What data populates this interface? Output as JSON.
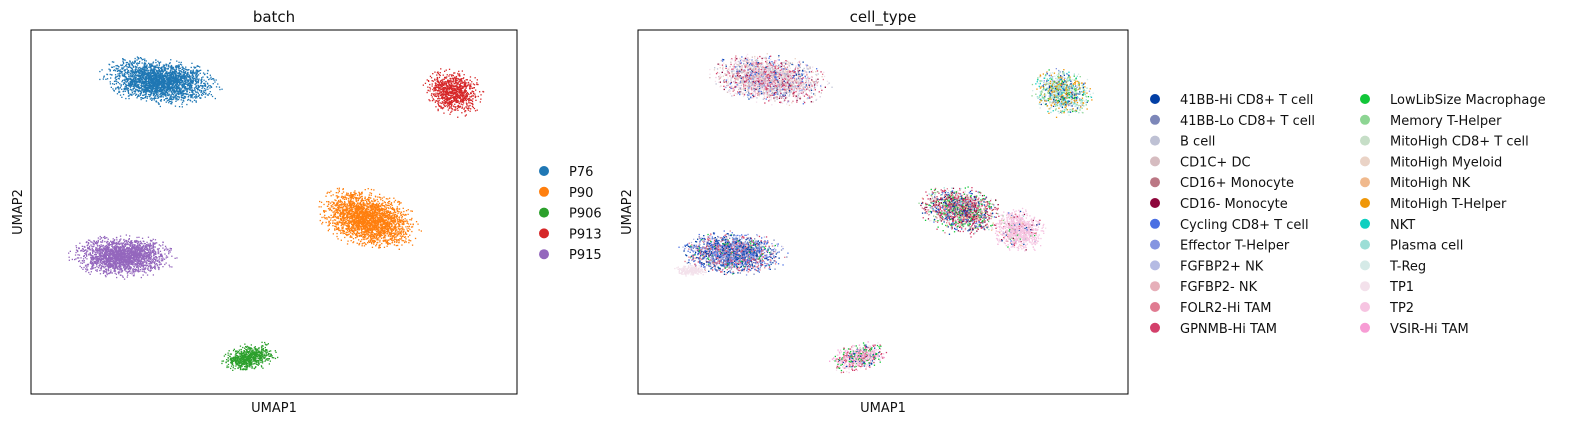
{
  "chart_data": [
    {
      "type": "scatter",
      "title": "batch",
      "xlabel": "UMAP1",
      "ylabel": "UMAP2",
      "xticks": "none",
      "yticks": "none",
      "legend_position": "right",
      "legend_entries": [
        {
          "label": "P76",
          "color": "#1f77b4"
        },
        {
          "label": "P90",
          "color": "#ff7f0e"
        },
        {
          "label": "P906",
          "color": "#2ca02c"
        },
        {
          "label": "P913",
          "color": "#d62728"
        },
        {
          "label": "P915",
          "color": "#9467bd"
        }
      ],
      "clusters": [
        {
          "batch": "P76",
          "center": [
            -0.62,
            0.6
          ],
          "extent": [
            0.44,
            0.16
          ],
          "color": "#1f77b4"
        },
        {
          "batch": "P913",
          "center": [
            0.8,
            0.62
          ],
          "extent": [
            0.16,
            0.16
          ],
          "color": "#d62728"
        },
        {
          "batch": "P90",
          "center": [
            0.3,
            0.08
          ],
          "extent": [
            0.56,
            0.2
          ],
          "color": "#ff7f0e"
        },
        {
          "batch": "P915",
          "center": [
            -0.84,
            -0.12
          ],
          "extent": [
            0.6,
            0.14
          ],
          "color": "#9467bd"
        },
        {
          "batch": "P906",
          "center": [
            -0.14,
            -0.72
          ],
          "extent": [
            0.32,
            0.1
          ],
          "color": "#2ca02c"
        }
      ]
    },
    {
      "type": "scatter",
      "title": "cell_type",
      "xlabel": "UMAP1",
      "ylabel": "UMAP2",
      "xticks": "none",
      "yticks": "none",
      "legend_position": "right",
      "legend_columns": 2,
      "legend_entries": [
        {
          "label": "41BB-Hi CD8+ T cell",
          "color": "#023fa5"
        },
        {
          "label": "41BB-Lo CD8+ T cell",
          "color": "#7d87b9"
        },
        {
          "label": "B cell",
          "color": "#bec1d4"
        },
        {
          "label": "CD1C+ DC",
          "color": "#d6bcc0"
        },
        {
          "label": "CD16+ Monocyte",
          "color": "#bb7784"
        },
        {
          "label": "CD16- Monocyte",
          "color": "#8e063b"
        },
        {
          "label": "Cycling CD8+ T cell",
          "color": "#4a6fe3"
        },
        {
          "label": "Effector T-Helper",
          "color": "#8595e1"
        },
        {
          "label": "FGFBP2+ NK",
          "color": "#b5bbe3"
        },
        {
          "label": "FGFBP2- NK",
          "color": "#e6afb9"
        },
        {
          "label": "FOLR2-Hi TAM",
          "color": "#e07b91"
        },
        {
          "label": "GPNMB-Hi TAM",
          "color": "#d33f6a"
        },
        {
          "label": "LowLibSize Macrophage",
          "color": "#11c638"
        },
        {
          "label": "Memory T-Helper",
          "color": "#8dd593"
        },
        {
          "label": "MitoHigh CD8+ T cell",
          "color": "#c6dec7"
        },
        {
          "label": "MitoHigh Myeloid",
          "color": "#ead3c6"
        },
        {
          "label": "MitoHigh NK",
          "color": "#f0b98d"
        },
        {
          "label": "MitoHigh T-Helper",
          "color": "#ef9708"
        },
        {
          "label": "NKT",
          "color": "#0fcfc0"
        },
        {
          "label": "Plasma cell",
          "color": "#9cded6"
        },
        {
          "label": "T-Reg",
          "color": "#d5eae7"
        },
        {
          "label": "TP1",
          "color": "#f3e1eb"
        },
        {
          "label": "TP2",
          "color": "#f6c4e1"
        },
        {
          "label": "VSIR-Hi TAM",
          "color": "#f79cd4"
        }
      ],
      "clusters": [
        {
          "region": "upper-left",
          "dominant_types": [
            "TP1",
            "B cell",
            "MitoHigh Myeloid",
            "GPNMB-Hi TAM",
            "Cycling CD8+ T cell"
          ]
        },
        {
          "region": "upper-right",
          "dominant_types": [
            "MitoHigh T-Helper",
            "Plasma cell",
            "T-Reg",
            "Memory T-Helper"
          ]
        },
        {
          "region": "center-right",
          "dominant_types": [
            "TP2",
            "CD16- Monocyte",
            "GPNMB-Hi TAM",
            "LowLibSize Macrophage"
          ]
        },
        {
          "region": "lower-left",
          "dominant_types": [
            "41BB-Hi CD8+ T cell",
            "Cycling CD8+ T cell",
            "Effector T-Helper",
            "FOLR2-Hi TAM"
          ]
        },
        {
          "region": "bottom",
          "dominant_types": [
            "TP2",
            "VSIR-Hi TAM",
            "LowLibSize Macrophage"
          ]
        }
      ]
    }
  ]
}
